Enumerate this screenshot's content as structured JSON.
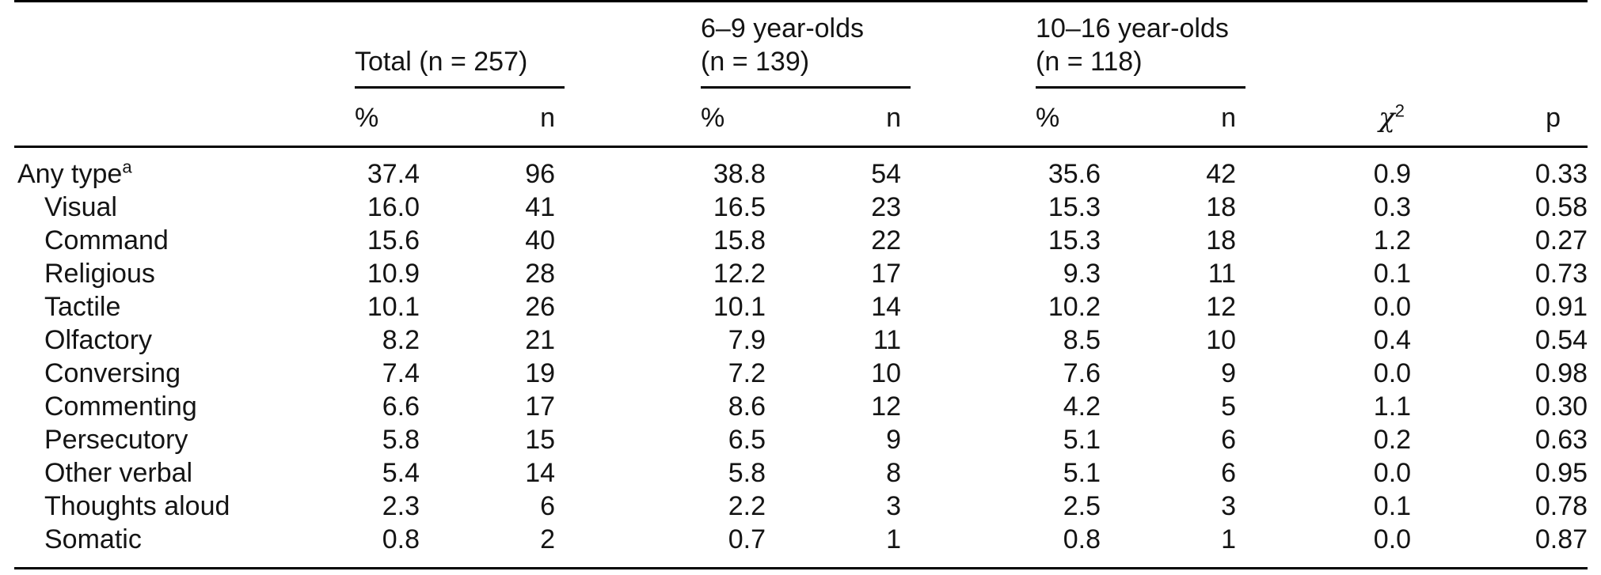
{
  "table": {
    "columns": {
      "pct_label": "%",
      "n_label": "n",
      "chi_label": "χ",
      "chi_exp": "2",
      "p_label": "p"
    },
    "groups": [
      {
        "line1": "Total (n = 257)"
      },
      {
        "line1": "6–9 year-olds",
        "line2": "(n = 139)"
      },
      {
        "line1": "10–16 year-olds",
        "line2": "(n = 118)"
      }
    ],
    "rows": [
      {
        "label": "Any type",
        "sup": "a",
        "indent": false,
        "total": {
          "pct": "37.4",
          "n": "96"
        },
        "age6to9": {
          "pct": "38.8",
          "n": "54"
        },
        "age10to16": {
          "pct": "35.6",
          "n": "42"
        },
        "chi2": "0.9",
        "p": "0.33"
      },
      {
        "label": "Visual",
        "indent": true,
        "total": {
          "pct": "16.0",
          "n": "41"
        },
        "age6to9": {
          "pct": "16.5",
          "n": "23"
        },
        "age10to16": {
          "pct": "15.3",
          "n": "18"
        },
        "chi2": "0.3",
        "p": "0.58"
      },
      {
        "label": "Command",
        "indent": true,
        "total": {
          "pct": "15.6",
          "n": "40"
        },
        "age6to9": {
          "pct": "15.8",
          "n": "22"
        },
        "age10to16": {
          "pct": "15.3",
          "n": "18"
        },
        "chi2": "1.2",
        "p": "0.27"
      },
      {
        "label": "Religious",
        "indent": true,
        "total": {
          "pct": "10.9",
          "n": "28"
        },
        "age6to9": {
          "pct": "12.2",
          "n": "17"
        },
        "age10to16": {
          "pct": "9.3",
          "n": "11"
        },
        "chi2": "0.1",
        "p": "0.73"
      },
      {
        "label": "Tactile",
        "indent": true,
        "total": {
          "pct": "10.1",
          "n": "26"
        },
        "age6to9": {
          "pct": "10.1",
          "n": "14"
        },
        "age10to16": {
          "pct": "10.2",
          "n": "12"
        },
        "chi2": "0.0",
        "p": "0.91"
      },
      {
        "label": "Olfactory",
        "indent": true,
        "total": {
          "pct": "8.2",
          "n": "21"
        },
        "age6to9": {
          "pct": "7.9",
          "n": "11"
        },
        "age10to16": {
          "pct": "8.5",
          "n": "10"
        },
        "chi2": "0.4",
        "p": "0.54"
      },
      {
        "label": "Conversing",
        "indent": true,
        "total": {
          "pct": "7.4",
          "n": "19"
        },
        "age6to9": {
          "pct": "7.2",
          "n": "10"
        },
        "age10to16": {
          "pct": "7.6",
          "n": "9"
        },
        "chi2": "0.0",
        "p": "0.98"
      },
      {
        "label": "Commenting",
        "indent": true,
        "total": {
          "pct": "6.6",
          "n": "17"
        },
        "age6to9": {
          "pct": "8.6",
          "n": "12"
        },
        "age10to16": {
          "pct": "4.2",
          "n": "5"
        },
        "chi2": "1.1",
        "p": "0.30"
      },
      {
        "label": "Persecutory",
        "indent": true,
        "total": {
          "pct": "5.8",
          "n": "15"
        },
        "age6to9": {
          "pct": "6.5",
          "n": "9"
        },
        "age10to16": {
          "pct": "5.1",
          "n": "6"
        },
        "chi2": "0.2",
        "p": "0.63"
      },
      {
        "label": "Other verbal",
        "indent": true,
        "total": {
          "pct": "5.4",
          "n": "14"
        },
        "age6to9": {
          "pct": "5.8",
          "n": "8"
        },
        "age10to16": {
          "pct": "5.1",
          "n": "6"
        },
        "chi2": "0.0",
        "p": "0.95"
      },
      {
        "label": "Thoughts aloud",
        "indent": true,
        "total": {
          "pct": "2.3",
          "n": "6"
        },
        "age6to9": {
          "pct": "2.2",
          "n": "3"
        },
        "age10to16": {
          "pct": "2.5",
          "n": "3"
        },
        "chi2": "0.1",
        "p": "0.78"
      },
      {
        "label": "Somatic",
        "indent": true,
        "total": {
          "pct": "0.8",
          "n": "2"
        },
        "age6to9": {
          "pct": "0.7",
          "n": "1"
        },
        "age10to16": {
          "pct": "0.8",
          "n": "1"
        },
        "chi2": "0.0",
        "p": "0.87"
      }
    ]
  }
}
